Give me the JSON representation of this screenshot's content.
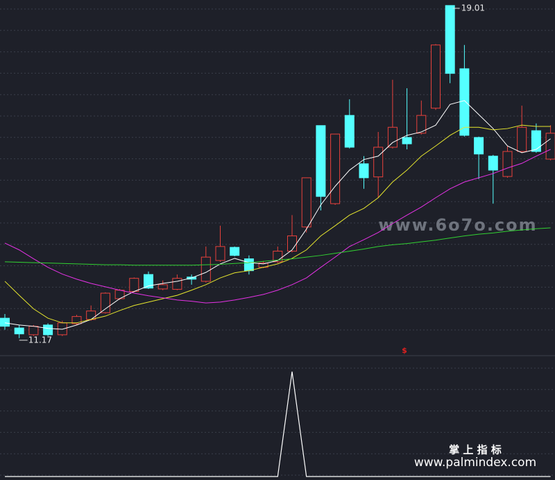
{
  "chart_data": {
    "type": "candlestick",
    "up_color": "#e8413c",
    "down_color": "#54ffff",
    "ylim": [
      10.79,
      19.14
    ],
    "open": [
      11.64,
      11.41,
      11.25,
      11.48,
      11.25,
      11.51,
      11.61,
      11.77,
      12.1,
      12.27,
      12.67,
      12.33,
      12.32,
      12.61,
      12.51,
      13.0,
      13.31,
      13.04,
      12.84,
      12.97,
      13.22,
      13.79,
      16.18,
      14.34,
      16.42,
      15.28,
      14.97,
      15.67,
      15.9,
      16.0,
      16.59,
      19.01,
      17.52,
      15.9,
      15.46,
      14.98,
      15.57,
      16.06,
      15.39
    ],
    "high": [
      11.74,
      11.48,
      11.48,
      11.52,
      11.58,
      11.72,
      11.94,
      12.25,
      12.33,
      12.6,
      12.74,
      12.53,
      12.67,
      12.67,
      13.33,
      13.82,
      13.33,
      13.12,
      12.99,
      13.33,
      14.07,
      14.95,
      16.18,
      15.98,
      16.8,
      15.46,
      16.03,
      17.26,
      17.06,
      16.77,
      18.1,
      19.01,
      18.08,
      15.92,
      15.49,
      15.7,
      16.65,
      16.23,
      16.19
    ],
    "low": [
      11.37,
      11.17,
      11.22,
      11.22,
      11.22,
      11.48,
      11.58,
      11.75,
      12.07,
      12.25,
      12.33,
      12.3,
      12.3,
      12.43,
      12.48,
      12.97,
      13.1,
      12.67,
      12.82,
      12.94,
      13.19,
      13.66,
      14.18,
      14.31,
      15.64,
      14.69,
      14.48,
      15.64,
      15.62,
      15.97,
      16.55,
      17.18,
      15.92,
      14.92,
      14.34,
      14.95,
      15.54,
      15.54,
      15.36
    ],
    "close": [
      11.45,
      11.27,
      11.45,
      11.25,
      11.53,
      11.68,
      11.81,
      12.23,
      12.3,
      12.58,
      12.35,
      12.43,
      12.58,
      12.56,
      13.08,
      13.33,
      13.12,
      12.76,
      12.94,
      13.22,
      13.58,
      14.95,
      14.51,
      15.98,
      15.67,
      14.95,
      15.67,
      16.14,
      15.75,
      16.42,
      18.08,
      17.41,
      15.95,
      15.51,
      15.13,
      15.57,
      16.14,
      15.57,
      16.0
    ],
    "series": [
      {
        "color": "#ffffff",
        "values": [
          11.53,
          11.48,
          11.45,
          11.4,
          11.38,
          11.48,
          11.61,
          11.86,
          12.1,
          12.27,
          12.4,
          12.46,
          12.51,
          12.59,
          12.72,
          12.92,
          13.05,
          12.95,
          12.92,
          13.0,
          13.25,
          13.74,
          14.31,
          14.75,
          15.13,
          15.38,
          15.46,
          15.78,
          15.95,
          16.03,
          16.19,
          16.68,
          16.77,
          16.44,
          16.11,
          15.7,
          15.54,
          15.62,
          15.87
        ]
      },
      {
        "color": "#e6e62e",
        "values": [
          12.51,
          12.18,
          11.86,
          11.64,
          11.53,
          11.53,
          11.61,
          11.69,
          11.82,
          11.94,
          12.02,
          12.1,
          12.18,
          12.3,
          12.43,
          12.59,
          12.71,
          12.76,
          12.84,
          12.92,
          13.05,
          13.25,
          13.58,
          13.82,
          14.07,
          14.23,
          14.48,
          14.85,
          15.13,
          15.46,
          15.7,
          15.95,
          16.14,
          16.14,
          16.08,
          16.11,
          16.19,
          16.16,
          16.16
        ]
      },
      {
        "color": "#e632e6",
        "values": [
          13.41,
          13.25,
          13.04,
          12.84,
          12.68,
          12.56,
          12.46,
          12.38,
          12.3,
          12.23,
          12.17,
          12.12,
          12.07,
          12.04,
          12.0,
          12.02,
          12.07,
          12.13,
          12.2,
          12.3,
          12.43,
          12.59,
          12.84,
          13.08,
          13.33,
          13.49,
          13.66,
          13.87,
          14.07,
          14.26,
          14.48,
          14.69,
          14.85,
          14.95,
          15.05,
          15.18,
          15.29,
          15.46,
          15.62
        ]
      },
      {
        "color": "#32d232",
        "values": [
          12.97,
          12.96,
          12.95,
          12.94,
          12.93,
          12.92,
          12.91,
          12.9,
          12.9,
          12.89,
          12.89,
          12.89,
          12.89,
          12.89,
          12.9,
          12.91,
          12.93,
          12.95,
          12.98,
          13.01,
          13.04,
          13.08,
          13.12,
          13.17,
          13.22,
          13.27,
          13.33,
          13.37,
          13.4,
          13.44,
          13.48,
          13.53,
          13.58,
          13.62,
          13.65,
          13.69,
          13.72,
          13.75,
          13.77
        ]
      }
    ],
    "indicator": {
      "color": "#ffffff",
      "ylim": [
        0,
        1
      ],
      "values": [
        0,
        0,
        0,
        0,
        0,
        0,
        0,
        0,
        0,
        0,
        0,
        0,
        0,
        0,
        0,
        0,
        0,
        0,
        0,
        0,
        1,
        0,
        0,
        0,
        0,
        0,
        0,
        0,
        0,
        0,
        0,
        0,
        0,
        0,
        0,
        0,
        0,
        0,
        0
      ]
    },
    "signal_mark": "$",
    "watermark": "www.6o7o.com",
    "brand_name": "掌 上 指 标",
    "brand_url": "www.palmindex.com"
  }
}
